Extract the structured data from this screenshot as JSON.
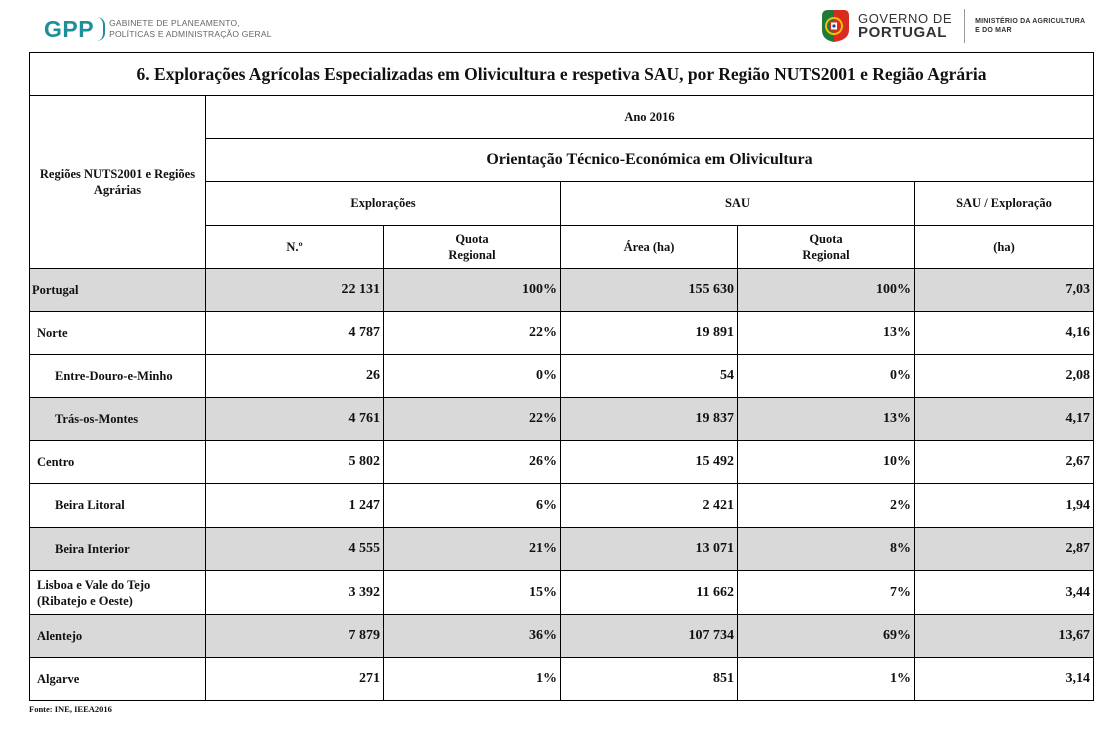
{
  "header": {
    "gpp_logo": "GPP",
    "gpp_line1": "GABINETE DE PLANEAMENTO,",
    "gpp_line2": "POLÍTICAS E ADMINISTRAÇÃO GERAL",
    "gov_line1": "GOVERNO DE",
    "gov_line2": "PORTUGAL",
    "ministry_line1": "MINISTÉRIO DA AGRICULTURA",
    "ministry_line2": "E DO MAR"
  },
  "table": {
    "title": "6. Explorações Agrícolas Especializadas em Olivicultura e respetiva SAU, por Região NUTS2001 e Região Agrária",
    "row_header": "Regiões NUTS2001 e Regiões Agrárias",
    "year": "Ano 2016",
    "orientation": "Orientação Técnico-Económica em Olivicultura",
    "group_exploracoes": "Explorações",
    "group_sau": "SAU",
    "group_sau_exp": "SAU / Exploração",
    "col_n": "N.º",
    "col_quota1": "Quota Regional",
    "col_area": "Área (ha)",
    "col_quota2": "Quota Regional",
    "col_ha": "(ha)",
    "rows": [
      {
        "region": "Portugal",
        "n": "22 131",
        "quota1": "100%",
        "area": "155 630",
        "quota2": "100%",
        "sau_exp": "7,03"
      },
      {
        "region": "Norte",
        "n": "4 787",
        "quota1": "22%",
        "area": "19 891",
        "quota2": "13%",
        "sau_exp": "4,16"
      },
      {
        "region": "Entre-Douro-e-Minho",
        "n": "26",
        "quota1": "0%",
        "area": "54",
        "quota2": "0%",
        "sau_exp": "2,08"
      },
      {
        "region": "Trás-os-Montes",
        "n": "4 761",
        "quota1": "22%",
        "area": "19 837",
        "quota2": "13%",
        "sau_exp": "4,17"
      },
      {
        "region": "Centro",
        "n": "5 802",
        "quota1": "26%",
        "area": "15 492",
        "quota2": "10%",
        "sau_exp": "2,67"
      },
      {
        "region": "Beira Litoral",
        "n": "1 247",
        "quota1": "6%",
        "area": "2 421",
        "quota2": "2%",
        "sau_exp": "1,94"
      },
      {
        "region": "Beira Interior",
        "n": "4 555",
        "quota1": "21%",
        "area": "13 071",
        "quota2": "8%",
        "sau_exp": "2,87"
      },
      {
        "region": "Lisboa e Vale do Tejo (Ribatejo e Oeste)",
        "n": "3 392",
        "quota1": "15%",
        "area": "11 662",
        "quota2": "7%",
        "sau_exp": "3,44"
      },
      {
        "region": "Alentejo",
        "n": "7 879",
        "quota1": "36%",
        "area": "107 734",
        "quota2": "69%",
        "sau_exp": "13,67"
      },
      {
        "region": "Algarve",
        "n": "271",
        "quota1": "1%",
        "area": "851",
        "quota2": "1%",
        "sau_exp": "3,14"
      }
    ]
  },
  "footnote": "Fonte: INE, IEEA2016",
  "colors": {
    "shade": "#d9d9d9",
    "gpp_teal": "#1e8e9a",
    "flag_green": "#1f7a3a",
    "flag_red": "#d62d20"
  }
}
